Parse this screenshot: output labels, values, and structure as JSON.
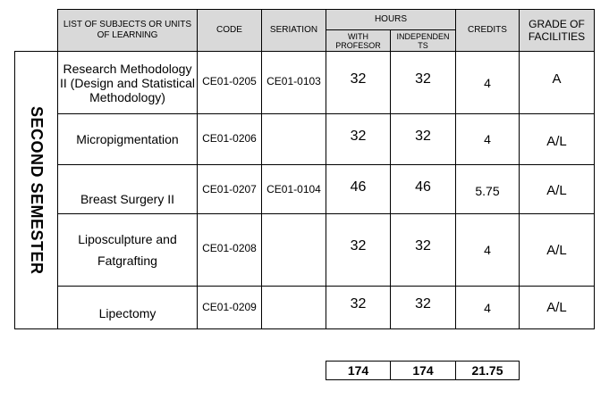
{
  "header": {
    "subjects": "LIST OF SUBJECTS OR UNITS OF LEARNING",
    "code": "CODE",
    "seriation": "SERIATION",
    "hours": "HOURS",
    "with_profesor": "WITH PROFESOR",
    "independents": "INDEPENDEN TS",
    "credits": "CREDITS",
    "grade": "GRADE OF FACILITIES"
  },
  "semester_label": "SECOND SEMESTER",
  "rows": [
    {
      "subject": "Research Methodology II (Design and Statistical Methodology)",
      "code": "CE01-0205",
      "seriation": "CE01-0103",
      "with_profesor": "32",
      "independent": "32",
      "credits": "4",
      "grade": "A"
    },
    {
      "subject": "Micropigmentation",
      "code": "CE01-0206",
      "seriation": "",
      "with_profesor": "32",
      "independent": "32",
      "credits": "4",
      "grade": "A/L"
    },
    {
      "subject": "Breast Surgery II",
      "code": "CE01-0207",
      "seriation": "CE01-0104",
      "with_profesor": "46",
      "independent": "46",
      "credits": "5.75",
      "grade": "A/L"
    },
    {
      "subject": "Liposculpture and Fatgrafting",
      "code": "CE01-0208",
      "seriation": "",
      "with_profesor": "32",
      "independent": "32",
      "credits": "4",
      "grade": "A/L"
    },
    {
      "subject": "Lipectomy",
      "code": "CE01-0209",
      "seriation": "",
      "with_profesor": "32",
      "independent": "32",
      "credits": "4",
      "grade": "A/L"
    }
  ],
  "totals": {
    "with_profesor": "174",
    "independent": "174",
    "credits": "21.75"
  }
}
